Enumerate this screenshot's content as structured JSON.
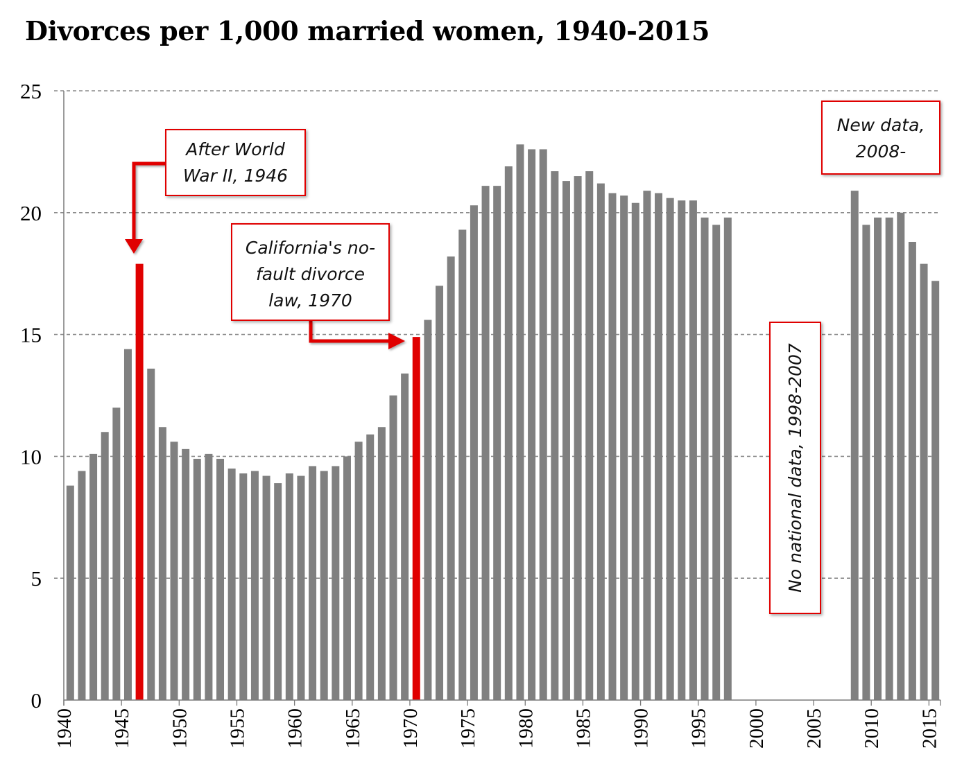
{
  "chart_data": {
    "type": "bar",
    "title": "Divorces per 1,000 married women, 1940-2015",
    "xlabel": "",
    "ylabel": "",
    "ylim": [
      0,
      25
    ],
    "yticks": [
      "0",
      "5",
      "10",
      "15",
      "20",
      "25"
    ],
    "xticks": [
      "1940",
      "1945",
      "1950",
      "1955",
      "1960",
      "1965",
      "1970",
      "1975",
      "1980",
      "1985",
      "1990",
      "1995",
      "2000",
      "2005",
      "2010",
      "2015"
    ],
    "grid": "horizontal dashed",
    "bar_color": "#808080",
    "highlight_color": "#e00000",
    "highlighted_years": [
      1946,
      1970
    ],
    "points": [
      {
        "x": 1940,
        "y": 8.8
      },
      {
        "x": 1941,
        "y": 9.4
      },
      {
        "x": 1942,
        "y": 10.1
      },
      {
        "x": 1943,
        "y": 11.0
      },
      {
        "x": 1944,
        "y": 12.0
      },
      {
        "x": 1945,
        "y": 14.4
      },
      {
        "x": 1946,
        "y": 17.9
      },
      {
        "x": 1947,
        "y": 13.6
      },
      {
        "x": 1948,
        "y": 11.2
      },
      {
        "x": 1949,
        "y": 10.6
      },
      {
        "x": 1950,
        "y": 10.3
      },
      {
        "x": 1951,
        "y": 9.9
      },
      {
        "x": 1952,
        "y": 10.1
      },
      {
        "x": 1953,
        "y": 9.9
      },
      {
        "x": 1954,
        "y": 9.5
      },
      {
        "x": 1955,
        "y": 9.3
      },
      {
        "x": 1956,
        "y": 9.4
      },
      {
        "x": 1957,
        "y": 9.2
      },
      {
        "x": 1958,
        "y": 8.9
      },
      {
        "x": 1959,
        "y": 9.3
      },
      {
        "x": 1960,
        "y": 9.2
      },
      {
        "x": 1961,
        "y": 9.6
      },
      {
        "x": 1962,
        "y": 9.4
      },
      {
        "x": 1963,
        "y": 9.6
      },
      {
        "x": 1964,
        "y": 10.0
      },
      {
        "x": 1965,
        "y": 10.6
      },
      {
        "x": 1966,
        "y": 10.9
      },
      {
        "x": 1967,
        "y": 11.2
      },
      {
        "x": 1968,
        "y": 12.5
      },
      {
        "x": 1969,
        "y": 13.4
      },
      {
        "x": 1970,
        "y": 14.9
      },
      {
        "x": 1971,
        "y": 15.6
      },
      {
        "x": 1972,
        "y": 17.0
      },
      {
        "x": 1973,
        "y": 18.2
      },
      {
        "x": 1974,
        "y": 19.3
      },
      {
        "x": 1975,
        "y": 20.3
      },
      {
        "x": 1976,
        "y": 21.1
      },
      {
        "x": 1977,
        "y": 21.1
      },
      {
        "x": 1978,
        "y": 21.9
      },
      {
        "x": 1979,
        "y": 22.8
      },
      {
        "x": 1980,
        "y": 22.6
      },
      {
        "x": 1981,
        "y": 22.6
      },
      {
        "x": 1982,
        "y": 21.7
      },
      {
        "x": 1983,
        "y": 21.3
      },
      {
        "x": 1984,
        "y": 21.5
      },
      {
        "x": 1985,
        "y": 21.7
      },
      {
        "x": 1986,
        "y": 21.2
      },
      {
        "x": 1987,
        "y": 20.8
      },
      {
        "x": 1988,
        "y": 20.7
      },
      {
        "x": 1989,
        "y": 20.4
      },
      {
        "x": 1990,
        "y": 20.9
      },
      {
        "x": 1991,
        "y": 20.8
      },
      {
        "x": 1992,
        "y": 20.6
      },
      {
        "x": 1993,
        "y": 20.5
      },
      {
        "x": 1994,
        "y": 20.5
      },
      {
        "x": 1995,
        "y": 19.8
      },
      {
        "x": 1996,
        "y": 19.5
      },
      {
        "x": 1997,
        "y": 19.8
      },
      {
        "x": 2008,
        "y": 20.9
      },
      {
        "x": 2009,
        "y": 19.5
      },
      {
        "x": 2010,
        "y": 19.8
      },
      {
        "x": 2011,
        "y": 19.8
      },
      {
        "x": 2012,
        "y": 20.0
      },
      {
        "x": 2013,
        "y": 18.8
      },
      {
        "x": 2014,
        "y": 17.9
      },
      {
        "x": 2015,
        "y": 17.2
      }
    ]
  },
  "annotations": {
    "ww2": {
      "line1": "After World",
      "line2": "War II, 1946"
    },
    "nofault": {
      "line1": "California's no-",
      "line2": "fault divorce",
      "line3": "law, 1970"
    },
    "nodata": {
      "text": "No national data, 1998-2007"
    },
    "newdata": {
      "line1": "New data,",
      "line2": "2008-"
    }
  }
}
